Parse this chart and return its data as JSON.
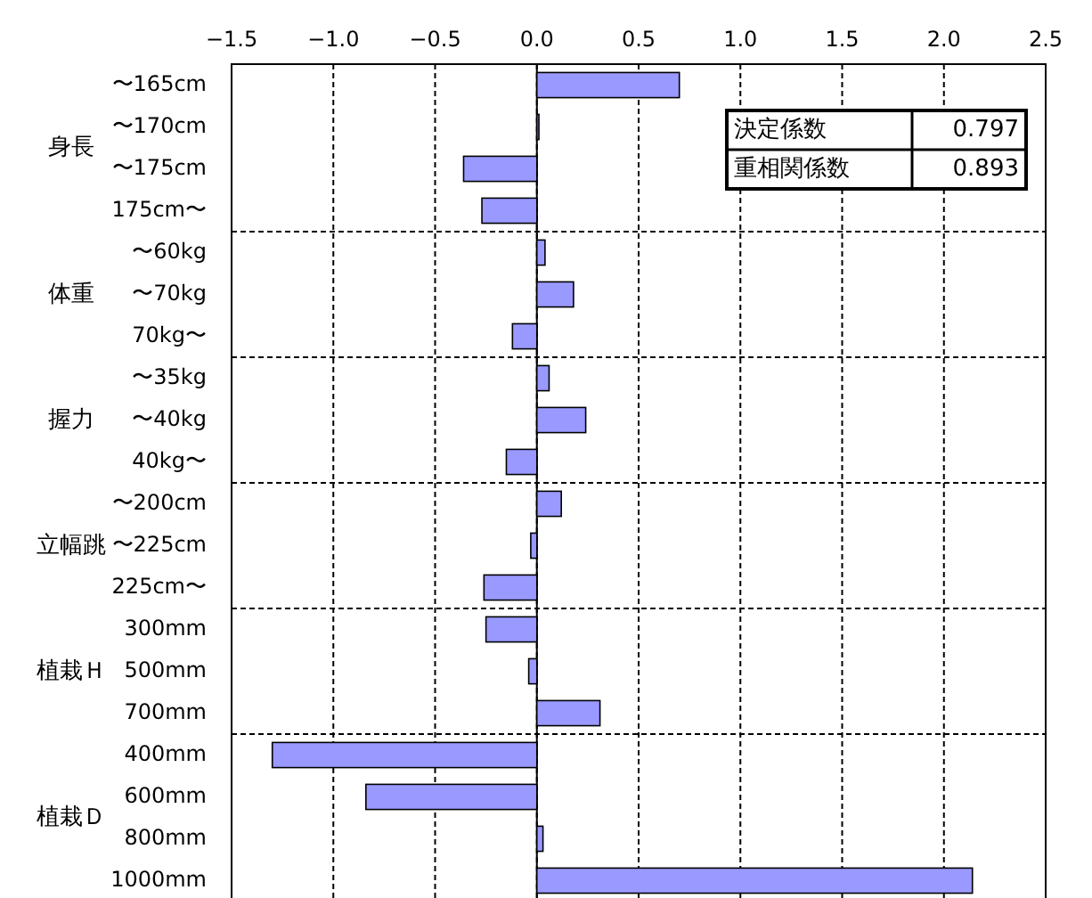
{
  "chart_data": {
    "type": "bar",
    "orientation": "horizontal",
    "categories": [
      "〜165cm",
      "〜170cm",
      "〜175cm",
      "175cm〜",
      "〜60kg",
      "〜70kg",
      "70kg〜",
      "〜35kg",
      "〜40kg",
      "40kg〜",
      "〜200cm",
      "〜225cm",
      "225cm〜",
      "300mm",
      "500mm",
      "700mm",
      "400mm",
      "600mm",
      "800mm",
      "1000mm"
    ],
    "values": [
      0.7,
      0.01,
      -0.36,
      -0.27,
      0.04,
      0.18,
      -0.12,
      0.06,
      0.24,
      -0.15,
      0.12,
      -0.03,
      -0.26,
      -0.25,
      -0.04,
      0.31,
      -1.3,
      -0.84,
      0.03,
      2.14
    ],
    "color": "#9999ff",
    "xlim": [
      -1.5,
      2.5
    ],
    "xticks": [
      {
        "value": -1.5,
        "label": "−1.5"
      },
      {
        "value": -1.0,
        "label": "−1.0"
      },
      {
        "value": -0.5,
        "label": "−0.5"
      },
      {
        "value": 0,
        "label": "0.0"
      },
      {
        "value": 0.5,
        "label": "0.5"
      },
      {
        "value": 1.0,
        "label": "1.0"
      },
      {
        "value": 1.5,
        "label": "1.5"
      },
      {
        "value": 2.0,
        "label": "2.0"
      },
      {
        "value": 2.5,
        "label": "2.5"
      }
    ],
    "grid": "x",
    "annotations": [
      "身長",
      "体重",
      "握力",
      "立幅跳",
      "植栽Ｈ",
      "植栽Ｄ",
      "決定係数",
      "0.797",
      "重相関係数",
      "0.893"
    ]
  }
}
